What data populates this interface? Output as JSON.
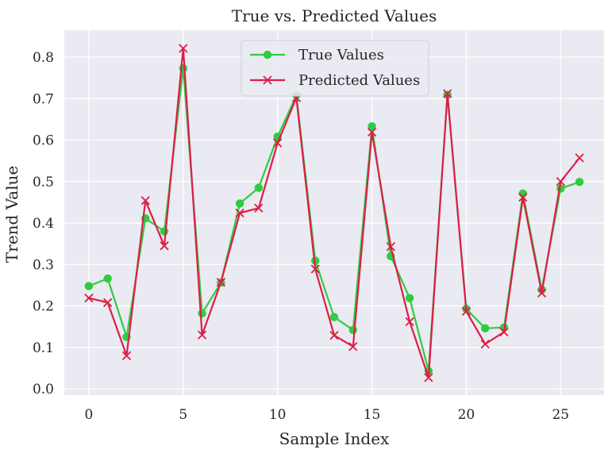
{
  "chart_data": {
    "type": "line",
    "title": "True vs. Predicted Values",
    "xlabel": "Sample Index",
    "ylabel": "Trend Value",
    "xlim": [
      -1.3,
      27.3
    ],
    "ylim": [
      -0.015,
      0.865
    ],
    "xticks": [
      0,
      5,
      10,
      15,
      20,
      25
    ],
    "xtick_labels": [
      "0",
      "5",
      "10",
      "15",
      "20",
      "25"
    ],
    "yticks": [
      0.0,
      0.1,
      0.2,
      0.3,
      0.4,
      0.5,
      0.6,
      0.7,
      0.8
    ],
    "ytick_labels": [
      "0.0",
      "0.1",
      "0.2",
      "0.3",
      "0.4",
      "0.5",
      "0.6",
      "0.7",
      "0.8"
    ],
    "grid": true,
    "legend_position": "top-center",
    "x": [
      0,
      1,
      2,
      3,
      4,
      5,
      6,
      7,
      8,
      9,
      10,
      11,
      12,
      13,
      14,
      15,
      16,
      17,
      18,
      19,
      20,
      21,
      22,
      23,
      24,
      25,
      26
    ],
    "series": [
      {
        "name": "True Values",
        "color": "#2ecc40",
        "marker": "circle",
        "values": [
          0.248,
          0.266,
          0.125,
          0.411,
          0.38,
          0.773,
          0.182,
          0.256,
          0.447,
          0.485,
          0.608,
          0.708,
          0.309,
          0.173,
          0.142,
          0.633,
          0.32,
          0.219,
          0.043,
          0.709,
          0.193,
          0.146,
          0.148,
          0.471,
          0.239,
          0.483,
          0.499
        ]
      },
      {
        "name": "Predicted Values",
        "color": "#dc1e46",
        "marker": "x",
        "values": [
          0.219,
          0.208,
          0.08,
          0.454,
          0.345,
          0.821,
          0.13,
          0.257,
          0.424,
          0.436,
          0.593,
          0.702,
          0.289,
          0.129,
          0.102,
          0.619,
          0.343,
          0.162,
          0.027,
          0.712,
          0.187,
          0.108,
          0.137,
          0.462,
          0.231,
          0.5,
          0.557
        ]
      }
    ]
  },
  "colors": {
    "plot_background": "#eaeaf2",
    "grid": "#ffffff",
    "text": "#262626"
  }
}
